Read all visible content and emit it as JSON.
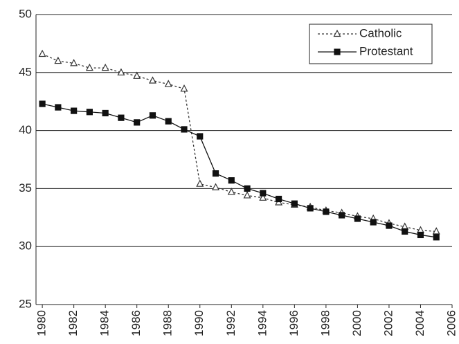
{
  "chart_data": {
    "type": "line",
    "x": [
      1980,
      1981,
      1982,
      1983,
      1984,
      1985,
      1986,
      1987,
      1988,
      1989,
      1990,
      1991,
      1992,
      1993,
      1994,
      1995,
      1996,
      1997,
      1998,
      1999,
      2000,
      2001,
      2002,
      2003,
      2004,
      2005
    ],
    "series": [
      {
        "name": "Catholic",
        "color": "#333333",
        "dashed": true,
        "marker": "triangle",
        "values": [
          46.6,
          46.0,
          45.8,
          45.4,
          45.4,
          45.0,
          44.7,
          44.3,
          44.0,
          43.6,
          35.4,
          35.1,
          34.7,
          34.4,
          34.2,
          33.8,
          33.6,
          33.4,
          33.1,
          32.9,
          32.6,
          32.4,
          32.0,
          31.7,
          31.4,
          31.3
        ]
      },
      {
        "name": "Protestant",
        "color": "#111111",
        "dashed": false,
        "marker": "square",
        "values": [
          42.3,
          42.0,
          41.7,
          41.6,
          41.5,
          41.1,
          40.7,
          41.3,
          40.8,
          40.1,
          39.5,
          36.3,
          35.7,
          35.0,
          34.6,
          34.1,
          33.7,
          33.3,
          33.0,
          32.7,
          32.4,
          32.1,
          31.8,
          31.3,
          31.0,
          30.8
        ]
      }
    ],
    "xlim": [
      1979.6,
      2006
    ],
    "xticks": [
      1980,
      1982,
      1984,
      1986,
      1988,
      1990,
      1992,
      1994,
      1996,
      1998,
      2000,
      2002,
      2004,
      2006
    ],
    "ylim": [
      25,
      50
    ],
    "yticks": [
      25,
      30,
      35,
      40,
      45,
      50
    ],
    "grid": true,
    "legend": "top-right"
  }
}
